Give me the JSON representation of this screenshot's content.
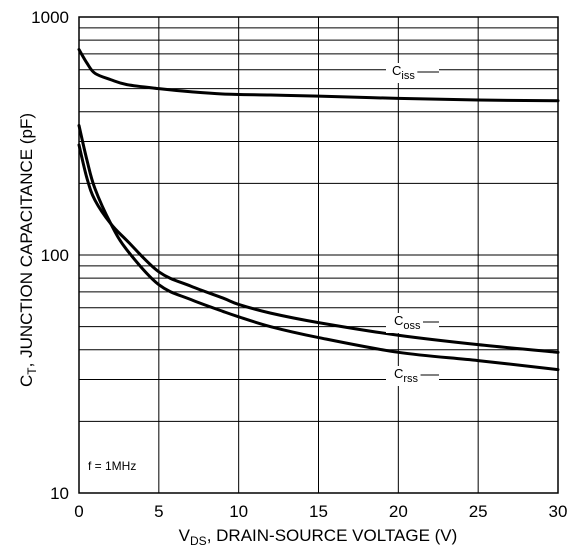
{
  "chart_data": {
    "type": "line",
    "title": "",
    "x_axis": {
      "label_main": "V",
      "label_sub": "DS",
      "label_rest": ", DRAIN-SOURCE VOLTAGE (V)",
      "range": [
        0,
        30
      ],
      "ticks": [
        0,
        5,
        10,
        15,
        20,
        25,
        30
      ],
      "tick_labels": [
        "0",
        "5",
        "10",
        "15",
        "20",
        "25",
        "30"
      ]
    },
    "y_axis": {
      "label_main": "C",
      "label_sub": "T",
      "label_rest": ", JUNCTION CAPACITANCE (pF)",
      "scale": "log",
      "range": [
        10,
        1000
      ],
      "ticks": [
        10,
        100,
        1000
      ],
      "tick_labels": [
        "10",
        "100",
        "1000"
      ]
    },
    "grid": true,
    "annotation": "f = 1MHz",
    "series": [
      {
        "name_main": "C",
        "name_sub": "iss",
        "x": [
          0,
          0.5,
          1,
          2,
          3,
          5,
          7,
          9,
          12,
          15,
          20,
          25,
          30
        ],
        "y": [
          730,
          640,
          580,
          545,
          520,
          500,
          485,
          475,
          470,
          465,
          455,
          448,
          445
        ]
      },
      {
        "name_main": "C",
        "name_sub": "oss",
        "x": [
          0,
          0.5,
          1,
          2,
          3,
          5,
          7,
          9,
          10,
          12,
          15,
          20,
          25,
          30
        ],
        "y": [
          290,
          210,
          170,
          135,
          115,
          85,
          74,
          66,
          62,
          57,
          52,
          46,
          42,
          39
        ]
      },
      {
        "name_main": "C",
        "name_sub": "rss",
        "x": [
          0,
          0.5,
          1,
          2,
          3,
          5,
          7,
          9,
          10,
          12,
          15,
          20,
          25,
          30
        ],
        "y": [
          350,
          250,
          190,
          135,
          105,
          75,
          65,
          58,
          55,
          50,
          45,
          39,
          36,
          33
        ]
      }
    ]
  }
}
